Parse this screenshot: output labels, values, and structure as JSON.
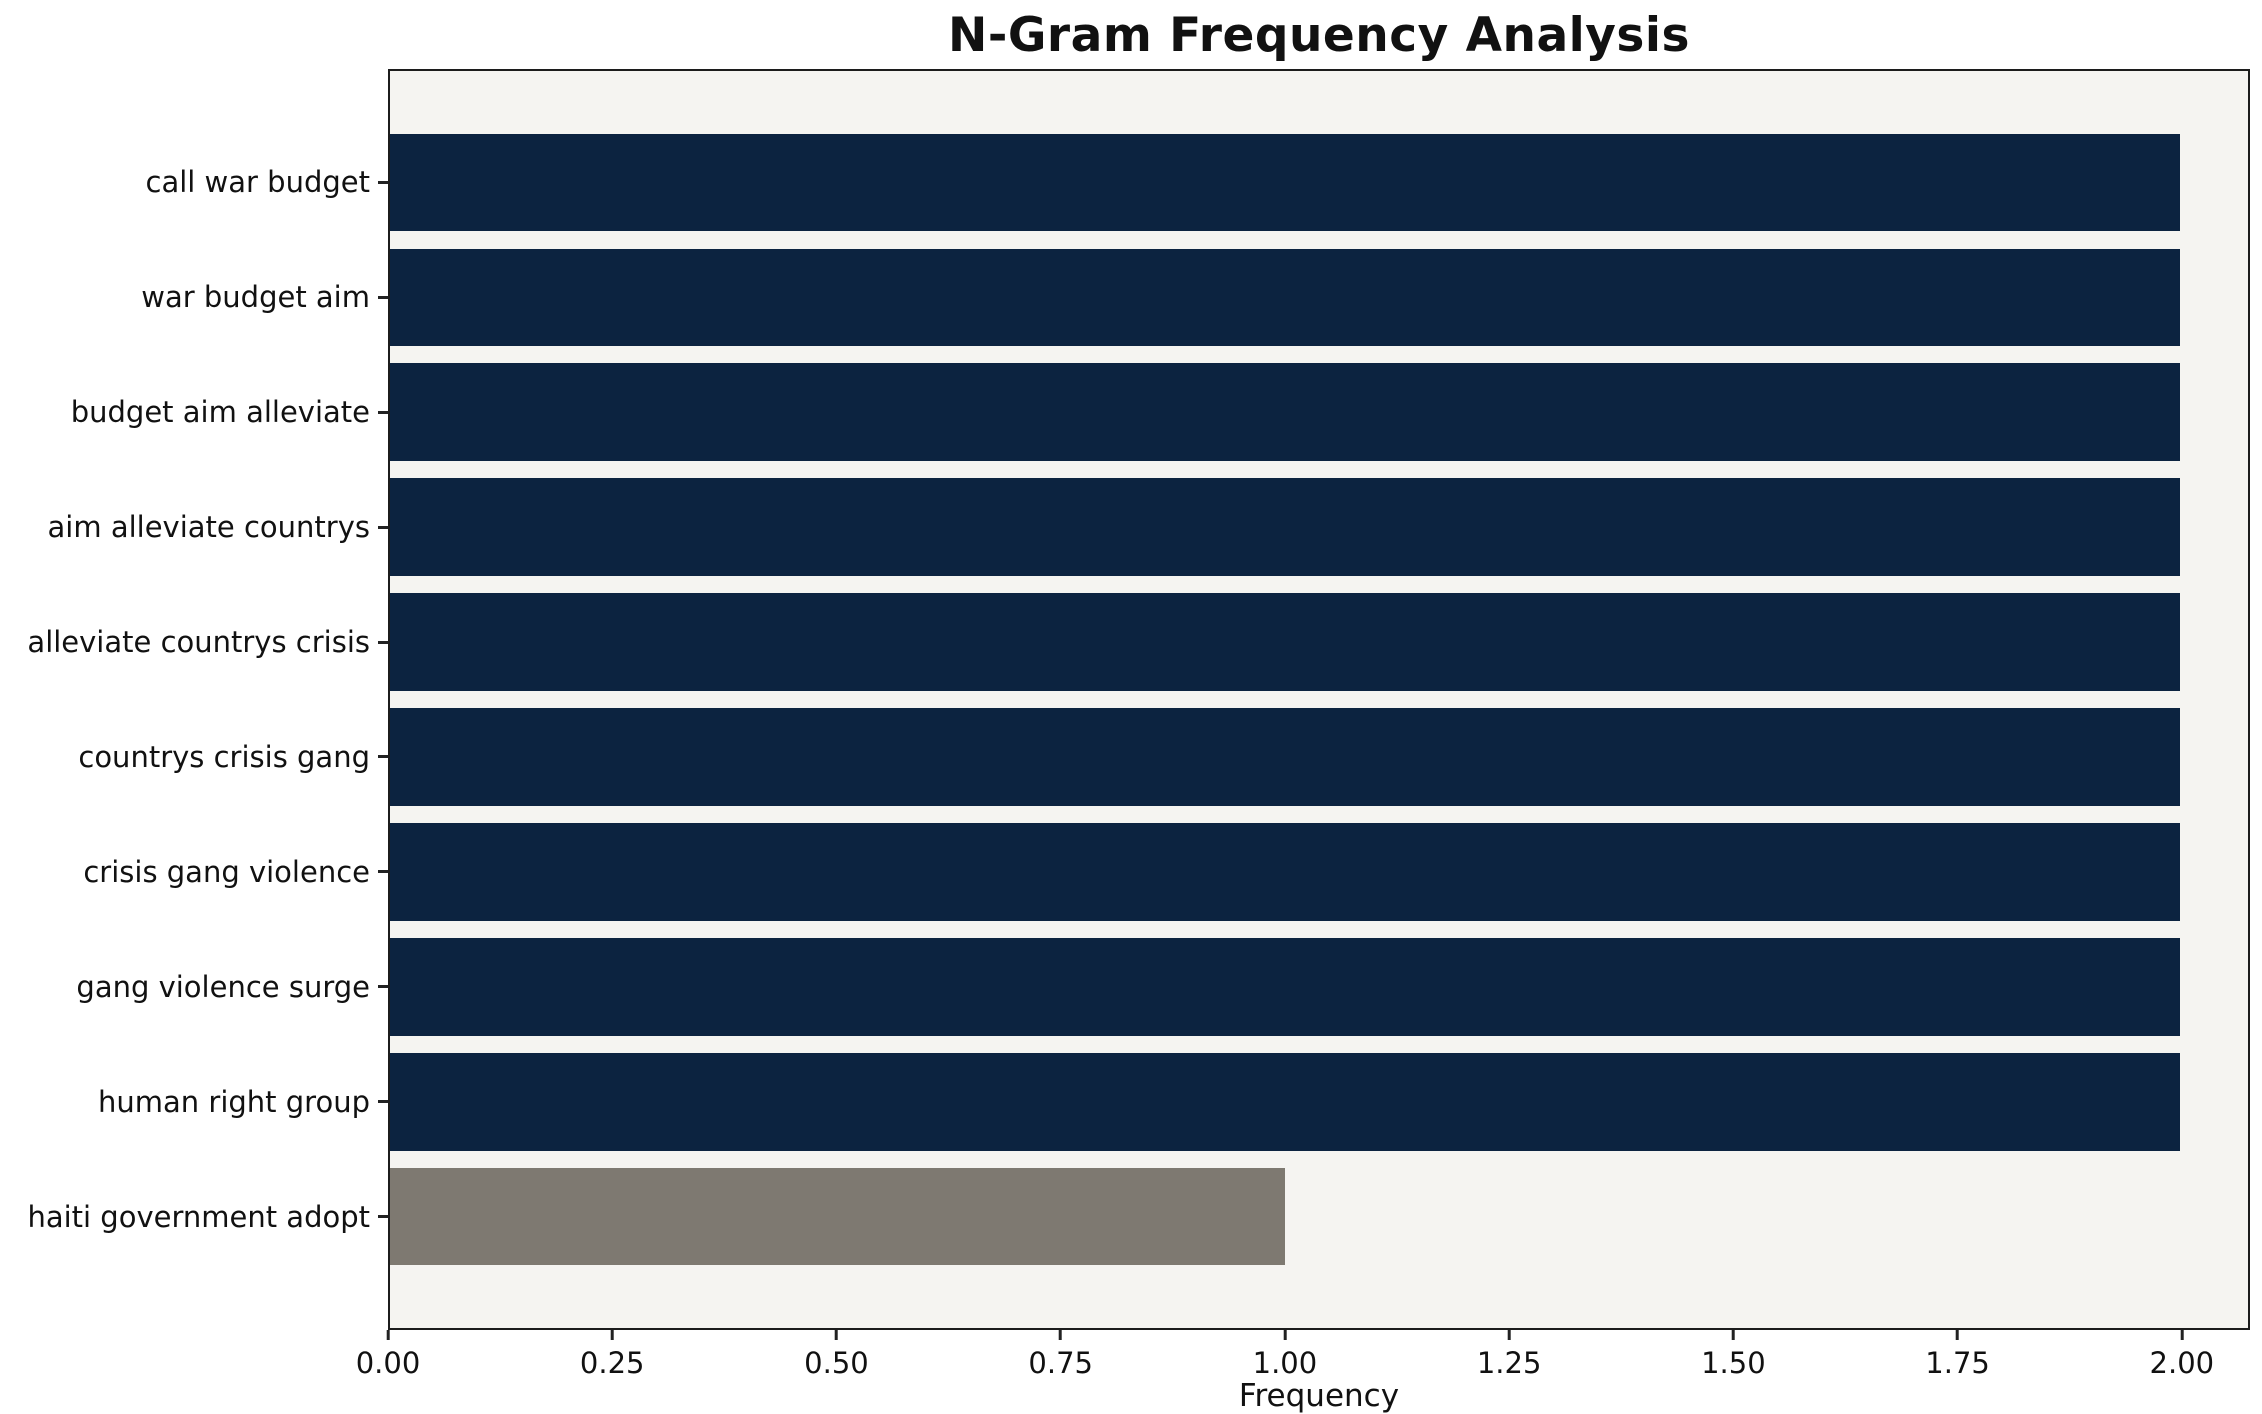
{
  "page": {
    "background": "#ffffff"
  },
  "chart_data": {
    "type": "bar",
    "orientation": "horizontal",
    "title": "N-Gram Frequency Analysis",
    "xlabel": "Frequency",
    "ylabel": "",
    "categories": [
      "call war budget",
      "war budget aim",
      "budget aim alleviate",
      "aim alleviate countrys",
      "alleviate countrys crisis",
      "countrys crisis gang",
      "crisis gang violence",
      "gang violence surge",
      "human right group",
      "haiti government adopt"
    ],
    "values": [
      2,
      2,
      2,
      2,
      2,
      2,
      2,
      2,
      2,
      1
    ],
    "bar_colors": [
      "#0c2340",
      "#0c2340",
      "#0c2340",
      "#0c2340",
      "#0c2340",
      "#0c2340",
      "#0c2340",
      "#0c2340",
      "#0c2340",
      "#7e7971"
    ],
    "x_ticks": [
      0.0,
      0.25,
      0.5,
      0.75,
      1.0,
      1.25,
      1.5,
      1.75,
      2.0
    ],
    "x_tick_labels": [
      "0.00",
      "0.25",
      "0.50",
      "0.75",
      "1.00",
      "1.25",
      "1.50",
      "1.75",
      "2.00"
    ],
    "xlim": [
      0,
      2.076
    ],
    "grid": false,
    "legend": null,
    "plot_background": "#f5f4f1",
    "figure_background": "#ffffff",
    "colors": {
      "bar_primary": "#0c2340",
      "bar_muted": "#7e7971",
      "axis": "#1c1c1c",
      "text": "#111111"
    }
  }
}
